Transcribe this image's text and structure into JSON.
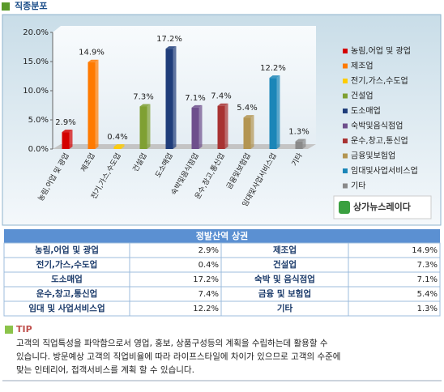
{
  "header": {
    "title": "직종분포"
  },
  "chart_data": {
    "type": "bar",
    "categories": [
      "농림,어업 및 광업",
      "제조업",
      "전기,가스,수도업",
      "건설업",
      "도소매업",
      "숙박및음식점업",
      "운수,창고,통신업",
      "금융및보험업",
      "임대및사업서비스업",
      "기타"
    ],
    "values": [
      2.9,
      14.9,
      0.4,
      7.3,
      17.2,
      7.1,
      7.4,
      5.4,
      12.2,
      1.3
    ],
    "value_labels": [
      "2.9%",
      "14.9%",
      "0.4%",
      "7.3%",
      "17.2%",
      "7.1%",
      "7.4%",
      "5.4%",
      "12.2%",
      "1.3%"
    ],
    "colors": [
      "#d40000",
      "#ff7a00",
      "#ffcc00",
      "#7fa032",
      "#1f3d7a",
      "#6e4f8c",
      "#a83232",
      "#b39552",
      "#1b86b8",
      "#8a8a8a"
    ],
    "ylim": [
      0,
      20
    ],
    "yticks": [
      {
        "value": 0,
        "label": "0.0%"
      },
      {
        "value": 5,
        "label": "5.0%"
      },
      {
        "value": 10,
        "label": "10.0%"
      },
      {
        "value": 15,
        "label": "15.0%"
      },
      {
        "value": 20,
        "label": "20.0%"
      }
    ],
    "legend": "right"
  },
  "logo": "상가뉴스레이다",
  "table": {
    "title": "정발산역 상권",
    "rows": [
      [
        "농림,어업 및 광업",
        "2.9%",
        "제조업",
        "14.9%"
      ],
      [
        "전기,가스,수도업",
        "0.4%",
        "건설업",
        "7.3%"
      ],
      [
        "도소매업",
        "17.2%",
        "숙박 및 음식점업",
        "7.1%"
      ],
      [
        "운수,창고,통신업",
        "7.4%",
        "금융 및 보험업",
        "5.4%"
      ],
      [
        "임대 및 사업서비스업",
        "12.2%",
        "기타",
        "1.3%"
      ]
    ]
  },
  "tip": {
    "title": "TIP",
    "lines": [
      "고객의 직업특성을 파악함으로서 영업, 홍보, 상품구성등의 계획을 수립하는데 활용할 수",
      "있습니다. 방문예상 고객의 직업비율에 따라 라이프스타일에 차이가 있으므로 고객의 수준에",
      "맞는 인테리어, 접객서비스를 계획 할 수 있습니다."
    ]
  }
}
